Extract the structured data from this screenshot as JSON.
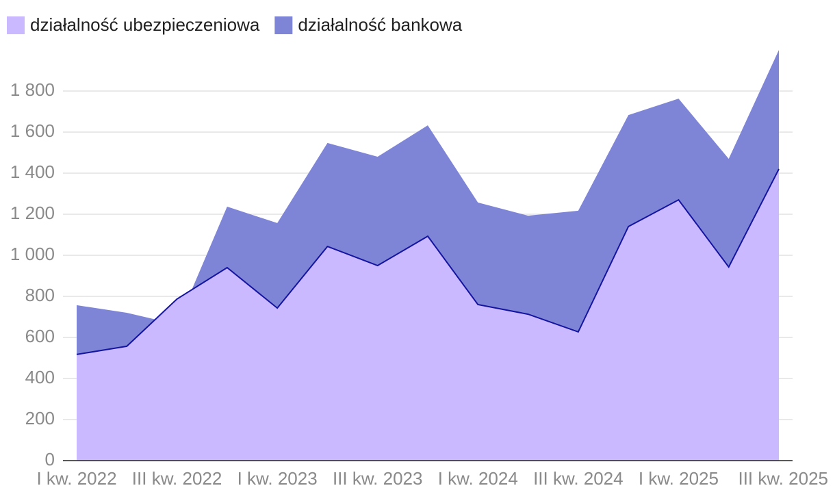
{
  "chart_data": {
    "type": "area",
    "categories": [
      "I kw. 2022",
      null,
      "III kw. 2022",
      null,
      "I kw. 2023",
      null,
      "III kw. 2023",
      null,
      "I kw. 2024",
      null,
      "III kw. 2024",
      null,
      "I kw. 2025",
      null,
      "III kw. 2025"
    ],
    "series": [
      {
        "name": "działalność ubezpieczeniowa",
        "color": "#cbb9ff",
        "values": [
          517,
          557,
          787,
          940,
          743,
          1043,
          950,
          1093,
          760,
          713,
          627,
          1140,
          1270,
          943,
          1420
        ]
      },
      {
        "name": "działalność bankowa",
        "color": "#7f85d6",
        "values": [
          757,
          720,
          663,
          1237,
          1157,
          1547,
          1480,
          1633,
          1257,
          1193,
          1217,
          1683,
          1763,
          1470,
          2000
        ]
      }
    ],
    "ylim": [
      0,
      2000
    ],
    "yticks": [
      0,
      200,
      400,
      600,
      800,
      {
        "value": 1000,
        "label": "1 000"
      },
      {
        "value": 1200,
        "label": "1 200"
      },
      {
        "value": 1400,
        "label": "1 400"
      },
      {
        "value": 1600,
        "label": "1 600"
      },
      {
        "value": 1800,
        "label": "1 800"
      }
    ],
    "grid": true
  }
}
